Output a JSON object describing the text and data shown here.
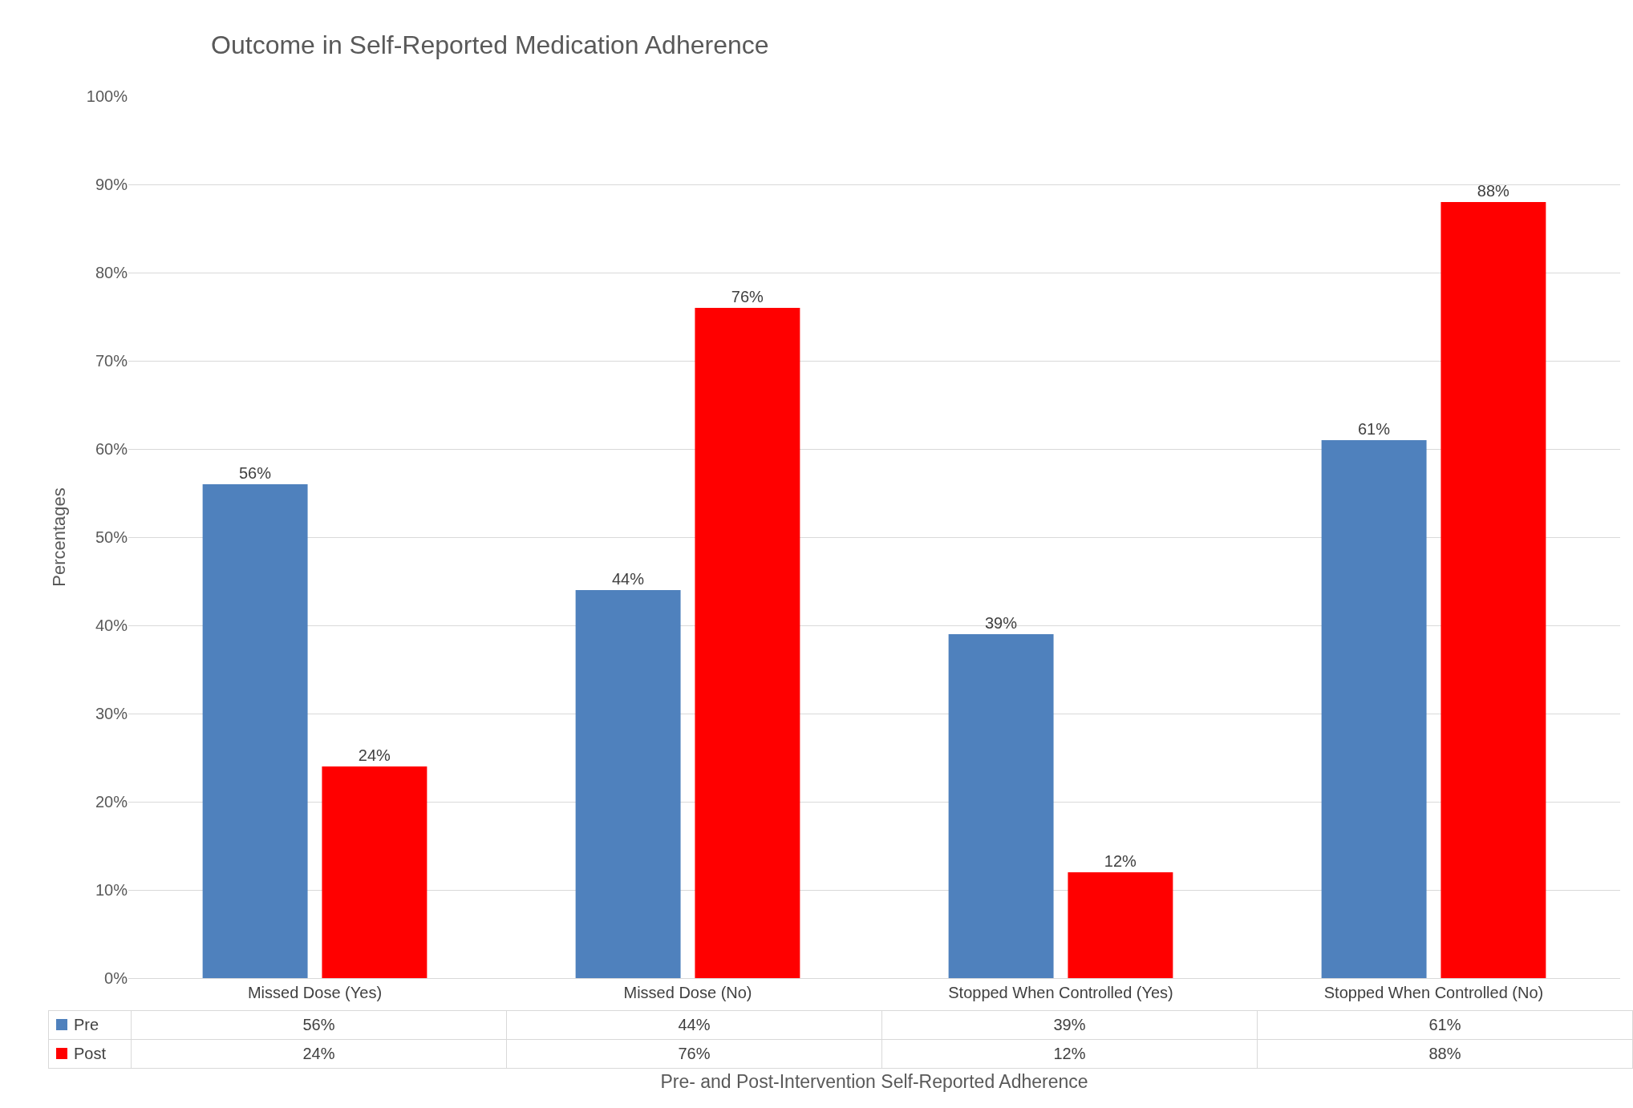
{
  "chart_data": {
    "type": "bar",
    "title": "Outcome in Self-Reported Medication Adherence",
    "xlabel": "Pre- and Post-Intervention Self-Reported Adherence",
    "ylabel": "Percentages",
    "categories": [
      "Missed Dose (Yes)",
      "Missed Dose (No)",
      "Stopped When Controlled (Yes)",
      "Stopped When Controlled (No)"
    ],
    "series": [
      {
        "name": "Pre",
        "color": "#4f81bd",
        "values": [
          56,
          44,
          39,
          61
        ],
        "value_labels": [
          "56%",
          "44%",
          "39%",
          "61%"
        ]
      },
      {
        "name": "Post",
        "color": "#ff0000",
        "values": [
          24,
          76,
          12,
          88
        ],
        "value_labels": [
          "24%",
          "76%",
          "12%",
          "88%"
        ]
      }
    ],
    "ylim": [
      0,
      100
    ],
    "yticks": [
      {
        "value": 0,
        "label": "0%"
      },
      {
        "value": 10,
        "label": "10%"
      },
      {
        "value": 20,
        "label": "20%"
      },
      {
        "value": 30,
        "label": "30%"
      },
      {
        "value": 40,
        "label": "40%"
      },
      {
        "value": 50,
        "label": "50%"
      },
      {
        "value": 60,
        "label": "60%"
      },
      {
        "value": 70,
        "label": "70%"
      },
      {
        "value": 80,
        "label": "80%"
      },
      {
        "value": 90,
        "label": "90%"
      },
      {
        "value": 100,
        "label": "100%"
      }
    ],
    "grid": "y",
    "legend": "bottom"
  }
}
